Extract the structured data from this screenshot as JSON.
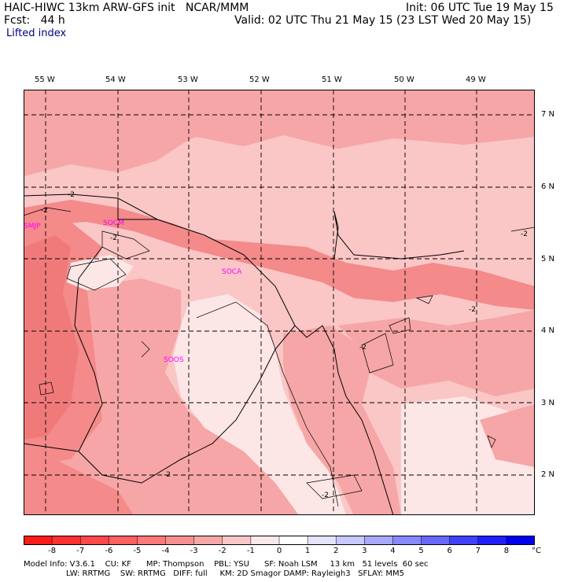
{
  "header": {
    "model_line": "HAIC-HIWC 13km ARW-GFS init   NCAR/MMM",
    "fcst_line": "Fcst:   44 h",
    "init_line": "Init: 06 UTC Tue 19 May 15",
    "valid_line": "Valid: 02 UTC Thu 21 May 15 (23 LST Wed 20 May 15)",
    "field_name": "Lifted index"
  },
  "map": {
    "longitude_labels": [
      "55 W",
      "54 W",
      "53 W",
      "52 W",
      "51 W",
      "50 W",
      "49 W"
    ],
    "latitude_labels": [
      "7 N",
      "6 N",
      "5 N",
      "4 N",
      "3 N",
      "2 N"
    ],
    "stations": [
      "SMJP",
      "SOCM",
      "SOCA",
      "SOOS"
    ],
    "contour_labels": [
      "-2",
      "-2",
      "-2",
      "-2",
      "-2",
      "-2",
      "-2",
      "-2"
    ]
  },
  "colorbar": {
    "ticks": [
      "-8",
      "-7",
      "-6",
      "-5",
      "-4",
      "-3",
      "-2",
      "-1",
      "0",
      "1",
      "2",
      "3",
      "4",
      "5",
      "6",
      "7",
      "8"
    ],
    "unit": "°C",
    "colors": [
      "#ff1a1a",
      "#ff3030",
      "#ff4848",
      "#ff6060",
      "#ff7878",
      "#f89090",
      "#f4a8a8",
      "#f8c8c8",
      "#fce8e8",
      "#ffffff",
      "#e4e4ff",
      "#c8c8ff",
      "#a8a8ff",
      "#8888ff",
      "#6868ff",
      "#4040ff",
      "#2020ff",
      "#0000ee"
    ]
  },
  "footer": {
    "line1": "Model Info: V3.6.1    CU: KF      MP: Thompson    PBL: YSU      SF: Noah LSM     13 km   51 levels  60 sec",
    "line2": "                 LW: RRTMG    SW: RRTMG   DIFF: full     KM: 2D Smagor DAMP: Rayleigh3   SFLAY: MM5"
  },
  "palette": {
    "strong": "#f48a8a",
    "medium": "#f6a6a6",
    "light": "#fac6c6",
    "pale": "#fde6e6"
  }
}
